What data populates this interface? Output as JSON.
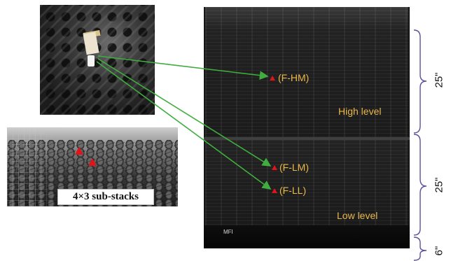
{
  "figure": {
    "substack_label": "4×3 sub-stacks",
    "pallet": {
      "base_label": "MFI",
      "measurement_points": [
        "(F-HM)",
        "(F-LM)",
        "(F-LL)"
      ],
      "levels": [
        "High level",
        "Low level"
      ]
    },
    "dimensions": [
      "25\"",
      "25\"",
      "6\""
    ],
    "colors": {
      "marker": "#e0141a",
      "label_text": "#e9b84a",
      "leader_line": "#3fae3f",
      "bracket": "#5b4f9e"
    }
  }
}
